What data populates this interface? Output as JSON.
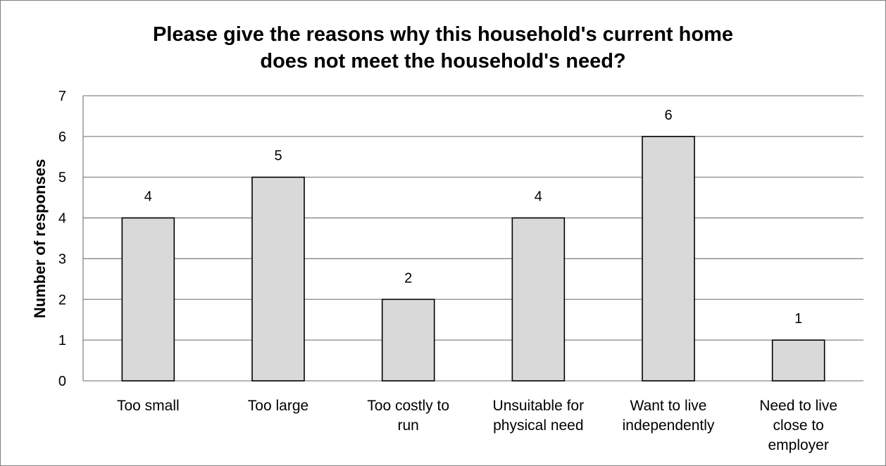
{
  "chart_data": {
    "type": "bar",
    "title_lines": [
      "Please give the reasons why this household's current home",
      "does not meet the household's need?"
    ],
    "xlabel": "",
    "ylabel": "Number of responses",
    "ylim": [
      0,
      7
    ],
    "yticks": [
      0,
      1,
      2,
      3,
      4,
      5,
      6,
      7
    ],
    "grid": true,
    "categories": [
      [
        "Too small"
      ],
      [
        "Too large"
      ],
      [
        "Too costly to",
        "run"
      ],
      [
        "Unsuitable for",
        "physical need"
      ],
      [
        "Want to live",
        "independently"
      ],
      [
        "Need to live",
        "close to",
        "employer"
      ]
    ],
    "values": [
      4,
      5,
      2,
      4,
      6,
      1
    ],
    "data_labels": [
      "4",
      "5",
      "2",
      "4",
      "6",
      "1"
    ],
    "colors": {
      "bar_fill": "#d9d9d9",
      "bar_stroke": "#000000",
      "grid": "#868686",
      "axis": "#868686"
    }
  }
}
